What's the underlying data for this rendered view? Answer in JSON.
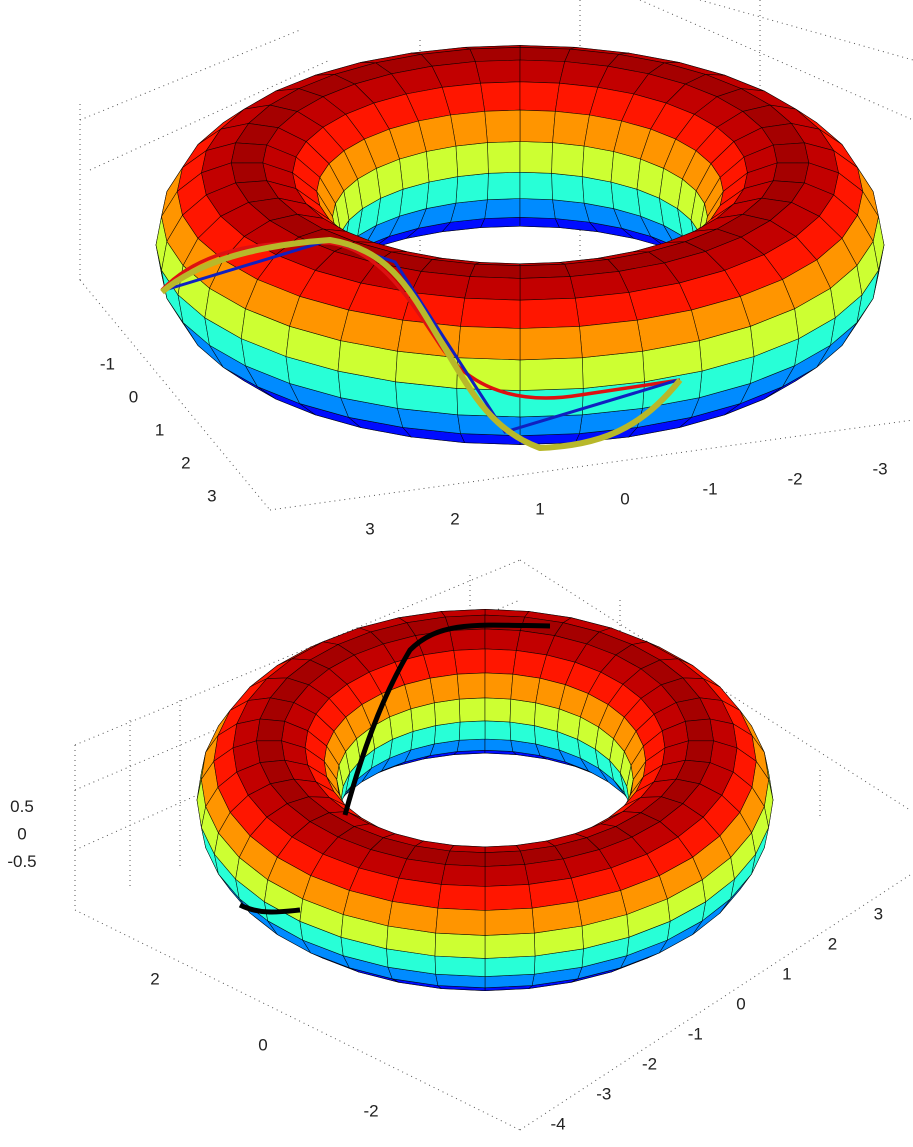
{
  "chart_data": [
    {
      "type": "wireframe3d",
      "xlim": [
        -4,
        4
      ],
      "xticks": [
        -1,
        0,
        1,
        2,
        3
      ],
      "ylim": [
        -4,
        4
      ],
      "yticks": [
        3,
        2,
        1,
        0,
        -1,
        -2,
        -3
      ]
    },
    {
      "type": "surface3d",
      "zlim": [
        -1,
        1
      ],
      "zticks": [
        0.5,
        0,
        -0.5
      ],
      "xlim": [
        -3,
        3
      ],
      "xticks": [
        2,
        0,
        -2
      ],
      "ylim": [
        -4,
        4
      ],
      "yticks": [
        3,
        2,
        1,
        0,
        -1,
        -2,
        -3,
        -4
      ]
    }
  ]
}
